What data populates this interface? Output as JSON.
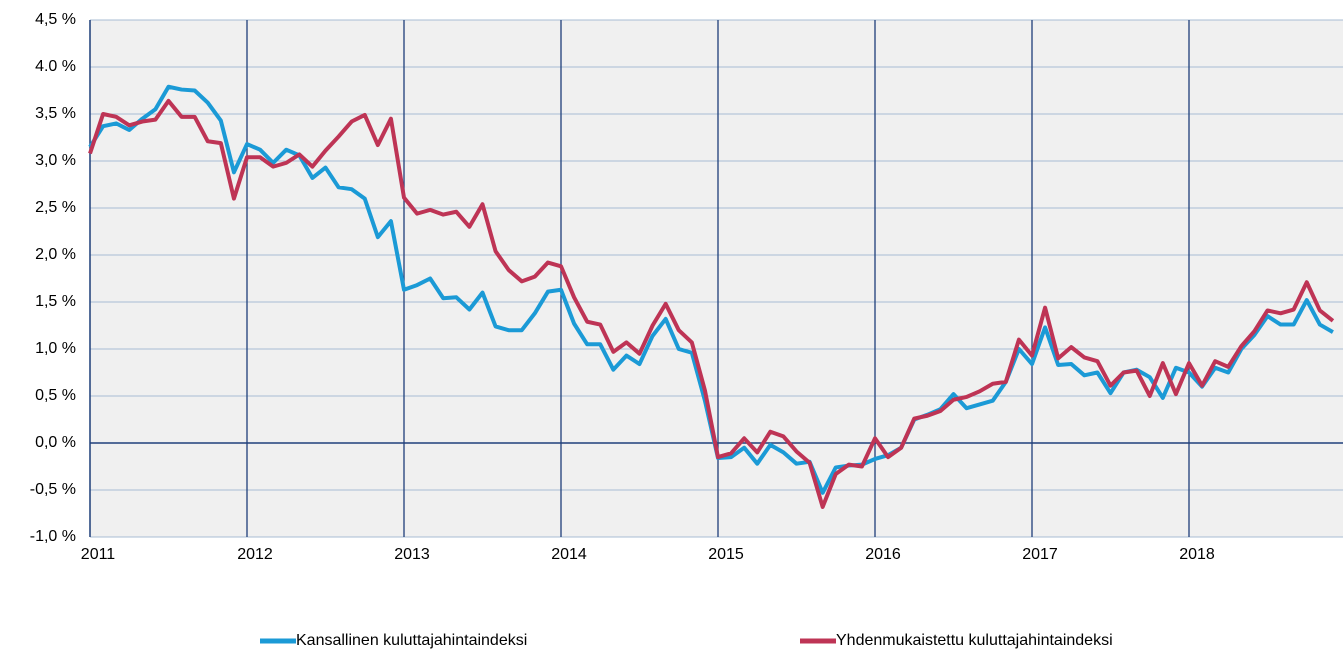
{
  "chart_data": {
    "type": "line",
    "categories": [
      "2011",
      null,
      null,
      null,
      null,
      null,
      null,
      null,
      null,
      null,
      null,
      null,
      "2012",
      null,
      null,
      null,
      null,
      null,
      null,
      null,
      null,
      null,
      null,
      null,
      "2013",
      null,
      null,
      null,
      null,
      null,
      null,
      null,
      null,
      null,
      null,
      null,
      "2014",
      null,
      null,
      null,
      null,
      null,
      null,
      null,
      null,
      null,
      null,
      null,
      "2015",
      null,
      null,
      null,
      null,
      null,
      null,
      null,
      null,
      null,
      null,
      null,
      "2016",
      null,
      null,
      null,
      null,
      null,
      null,
      null,
      null,
      null,
      null,
      null,
      "2017",
      null,
      null,
      null,
      null,
      null,
      null,
      null,
      null,
      null,
      null,
      null,
      "2018",
      null,
      null,
      null,
      null,
      null,
      null,
      null,
      null,
      null,
      null,
      null
    ],
    "series": [
      {
        "name": "Kansallinen kuluttajahintaindeksi",
        "color": "#1b9ad6",
        "values": [
          3.15,
          3.37,
          3.4,
          3.33,
          3.45,
          3.55,
          3.79,
          3.76,
          3.75,
          3.62,
          3.43,
          2.88,
          3.18,
          3.12,
          2.98,
          3.12,
          3.06,
          2.82,
          2.93,
          2.72,
          2.7,
          2.6,
          2.19,
          2.36,
          1.63,
          1.68,
          1.75,
          1.54,
          1.55,
          1.42,
          1.6,
          1.24,
          1.2,
          1.2,
          1.38,
          1.61,
          1.63,
          1.27,
          1.05,
          1.05,
          0.78,
          0.93,
          0.84,
          1.14,
          1.32,
          1.0,
          0.96,
          0.45,
          -0.16,
          -0.15,
          -0.05,
          -0.22,
          -0.02,
          -0.1,
          -0.22,
          -0.2,
          -0.53,
          -0.26,
          -0.24,
          -0.23,
          -0.17,
          -0.13,
          -0.05,
          0.25,
          0.3,
          0.36,
          0.52,
          0.37,
          0.41,
          0.45,
          0.65,
          1.0,
          0.84,
          1.23,
          0.83,
          0.84,
          0.72,
          0.75,
          0.53,
          0.75,
          0.78,
          0.7,
          0.48,
          0.8,
          0.75,
          0.6,
          0.8,
          0.75,
          1.0,
          1.15,
          1.35,
          1.26,
          1.26,
          1.52,
          1.26,
          1.18
        ]
      },
      {
        "name": "Yhdenmukaistettu kuluttajahintaindeksi",
        "color": "#be3455",
        "values": [
          3.08,
          3.5,
          3.47,
          3.38,
          3.42,
          3.44,
          3.64,
          3.47,
          3.47,
          3.21,
          3.19,
          2.6,
          3.04,
          3.04,
          2.94,
          2.98,
          3.07,
          2.94,
          3.11,
          3.26,
          3.42,
          3.49,
          3.17,
          3.45,
          2.61,
          2.44,
          2.48,
          2.43,
          2.46,
          2.3,
          2.54,
          2.04,
          1.84,
          1.72,
          1.77,
          1.92,
          1.88,
          1.55,
          1.29,
          1.26,
          0.97,
          1.07,
          0.95,
          1.25,
          1.48,
          1.2,
          1.07,
          0.56,
          -0.15,
          -0.11,
          0.05,
          -0.1,
          0.12,
          0.07,
          -0.09,
          -0.21,
          -0.68,
          -0.33,
          -0.23,
          -0.25,
          0.05,
          -0.15,
          -0.05,
          0.26,
          0.29,
          0.34,
          0.46,
          0.49,
          0.55,
          0.63,
          0.65,
          1.1,
          0.93,
          1.44,
          0.9,
          1.02,
          0.91,
          0.87,
          0.61,
          0.75,
          0.77,
          0.5,
          0.85,
          0.52,
          0.85,
          0.61,
          0.87,
          0.81,
          1.03,
          1.19,
          1.41,
          1.38,
          1.42,
          1.71,
          1.41,
          1.3
        ]
      }
    ],
    "ylim": [
      -1.0,
      4.5
    ],
    "yticks": [
      {
        "value": -1.0,
        "label": "-1,0 %"
      },
      {
        "value": -0.5,
        "label": "-0,5 %"
      },
      {
        "value": 0,
        "label": "0,0 %"
      },
      {
        "value": 0.5,
        "label": "0,5 %"
      },
      {
        "value": 1.0,
        "label": "1,0 %"
      },
      {
        "value": 1.5,
        "label": "1,5 %"
      },
      {
        "value": 2.0,
        "label": "2,0 %"
      },
      {
        "value": 2.5,
        "label": "2,5 %"
      },
      {
        "value": 3.0,
        "label": "3,0 %"
      },
      {
        "value": 3.5,
        "label": "3,5 %"
      },
      {
        "value": 4.0,
        "label": "4.0 %"
      },
      {
        "value": 4.5,
        "label": "4,5 %"
      }
    ],
    "grid": true,
    "legend": "bottom"
  }
}
